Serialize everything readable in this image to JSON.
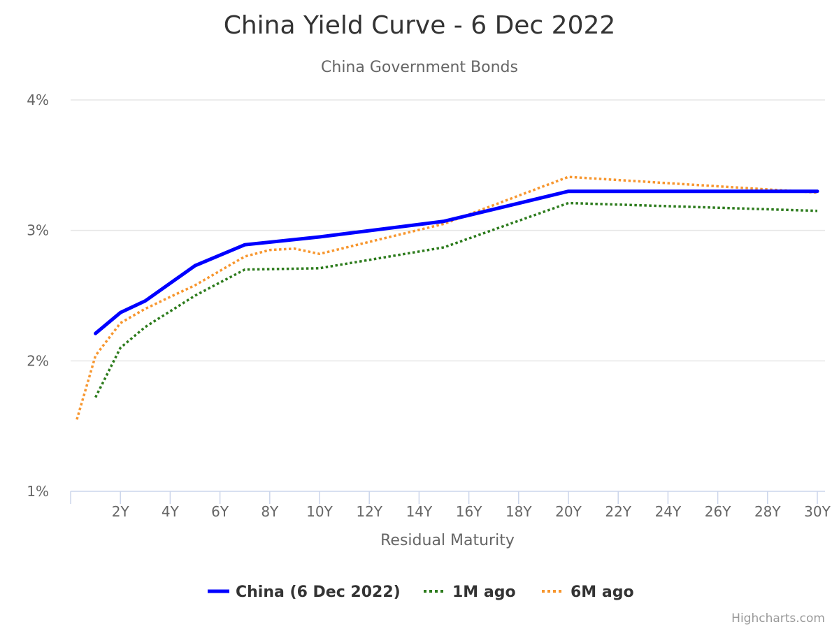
{
  "chart_data": {
    "type": "line",
    "title": "China Yield Curve - 6 Dec 2022",
    "subtitle": "China Government Bonds",
    "xlabel": "Residual Maturity",
    "ylabel": "",
    "x_tick_labels": [
      "2Y",
      "4Y",
      "6Y",
      "8Y",
      "10Y",
      "12Y",
      "14Y",
      "16Y",
      "18Y",
      "20Y",
      "22Y",
      "24Y",
      "26Y",
      "28Y",
      "30Y"
    ],
    "x_tick_values": [
      2,
      4,
      6,
      8,
      10,
      12,
      14,
      16,
      18,
      20,
      22,
      24,
      26,
      28,
      30
    ],
    "y_tick_labels": [
      "1%",
      "2%",
      "3%",
      "4%"
    ],
    "y_tick_values": [
      1,
      2,
      3,
      4
    ],
    "xlim": [
      0,
      30
    ],
    "ylim": [
      1,
      4
    ],
    "grid": "horizontal",
    "legend_position": "bottom-center",
    "credits": "Highcharts.com",
    "series": [
      {
        "name": "China (6 Dec 2022)",
        "color": "#0000ff",
        "style": "solid",
        "x": [
          1,
          2,
          3,
          5,
          7,
          10,
          15,
          20,
          30
        ],
        "y": [
          2.21,
          2.37,
          2.46,
          2.73,
          2.89,
          2.95,
          3.07,
          3.3,
          3.3
        ]
      },
      {
        "name": "1M ago",
        "color": "#2c7b1c",
        "style": "dotted",
        "x": [
          1,
          2,
          3,
          5,
          7,
          10,
          15,
          20,
          30
        ],
        "y": [
          1.72,
          2.1,
          2.26,
          2.5,
          2.7,
          2.71,
          2.87,
          3.21,
          3.15
        ]
      },
      {
        "name": "6M ago",
        "color": "#f7962e",
        "style": "dotted",
        "x": [
          0.25,
          1,
          2,
          3,
          5,
          7,
          8,
          9,
          10,
          15,
          20,
          30
        ],
        "y": [
          1.55,
          2.04,
          2.29,
          2.4,
          2.58,
          2.8,
          2.85,
          2.86,
          2.82,
          3.05,
          3.41,
          3.29
        ]
      }
    ]
  }
}
